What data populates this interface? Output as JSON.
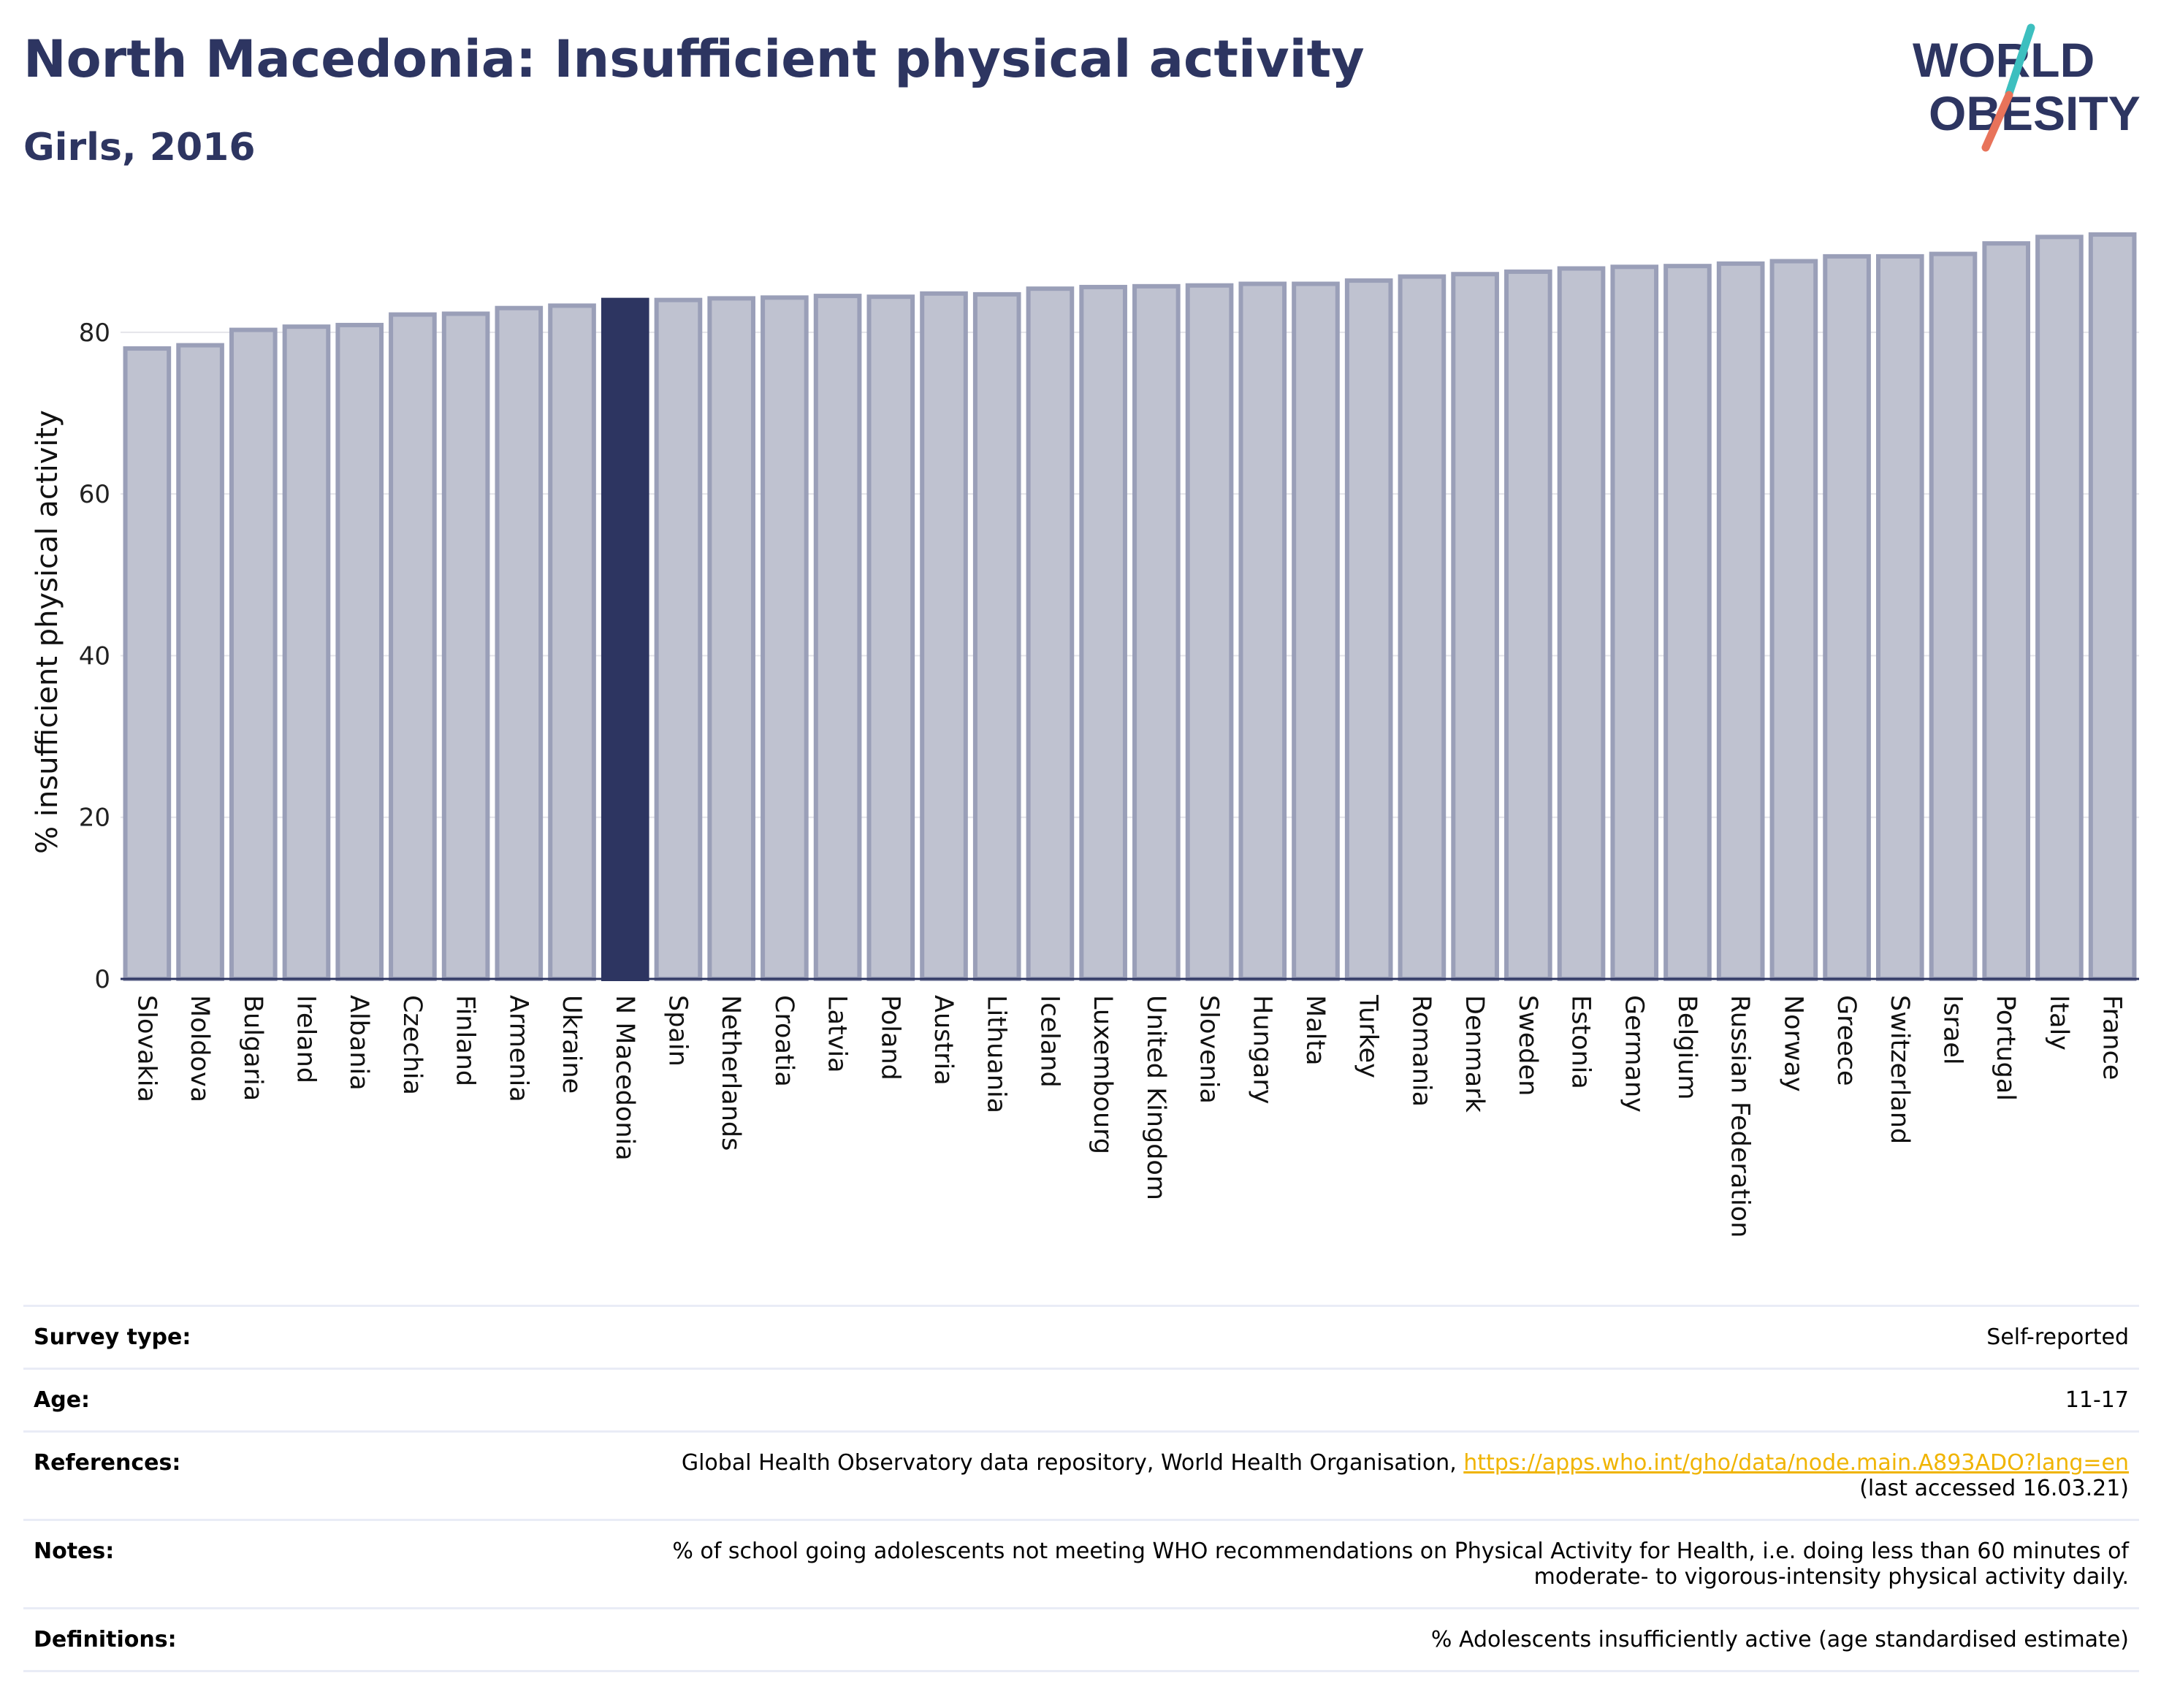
{
  "header": {
    "title": "North Macedonia: Insufficient physical activity",
    "subtitle": "Girls, 2016",
    "logo_line1": "WORLD",
    "logo_line2": "OBESITY"
  },
  "colors": {
    "highlight": "#2d3561",
    "bar_fill": "#bfc2d0",
    "bar_stroke": "#9a9fb8",
    "grid": "#e4e4ea",
    "logo_teal": "#3dbfbf",
    "logo_coral": "#e8735a",
    "link": "#f0b400"
  },
  "chart_data": {
    "type": "bar",
    "ylabel": "% insufficient physical activity",
    "ylim": [
      0,
      94
    ],
    "yticks": [
      0,
      20,
      40,
      60,
      80
    ],
    "grid": true,
    "highlight": "N Macedonia",
    "categories": [
      "Slovakia",
      "Moldova",
      "Bulgaria",
      "Ireland",
      "Albania",
      "Czechia",
      "Finland",
      "Armenia",
      "Ukraine",
      "N Macedonia",
      "Spain",
      "Netherlands",
      "Croatia",
      "Latvia",
      "Poland",
      "Austria",
      "Lithuania",
      "Iceland",
      "Luxembourg",
      "United Kingdom",
      "Slovenia",
      "Hungary",
      "Malta",
      "Turkey",
      "Romania",
      "Denmark",
      "Sweden",
      "Estonia",
      "Germany",
      "Belgium",
      "Russian Federation",
      "Norway",
      "Greece",
      "Switzerland",
      "Israel",
      "Portugal",
      "Italy",
      "France"
    ],
    "values": [
      78.0,
      78.4,
      80.3,
      80.7,
      80.9,
      82.2,
      82.3,
      83.0,
      83.3,
      84.0,
      84.0,
      84.2,
      84.3,
      84.5,
      84.4,
      84.8,
      84.7,
      85.4,
      85.6,
      85.7,
      85.8,
      86.0,
      86.0,
      86.4,
      86.9,
      87.2,
      87.5,
      87.9,
      88.1,
      88.2,
      88.5,
      88.8,
      89.4,
      89.4,
      89.7,
      91.0,
      91.8,
      92.1
    ]
  },
  "info": {
    "survey_type_label": "Survey type:",
    "survey_type_value": "Self-reported",
    "age_label": "Age:",
    "age_value": "11-17",
    "references_label": "References:",
    "references_text": "Global Health Observatory data repository, World Health Organisation, ",
    "references_link": "https://apps.who.int/gho/data/node.main.A893ADO?lang=en",
    "references_accessed": "(last accessed 16.03.21)",
    "notes_label": "Notes:",
    "notes_line1": "% of school going adolescents not meeting WHO recommendations on Physical Activity for Health, i.e. doing less than 60 minutes of",
    "notes_line2": "moderate- to vigorous-intensity physical activity daily.",
    "definitions_label": "Definitions:",
    "definitions_value": "% Adolescents insufficiently active (age standardised estimate)"
  }
}
